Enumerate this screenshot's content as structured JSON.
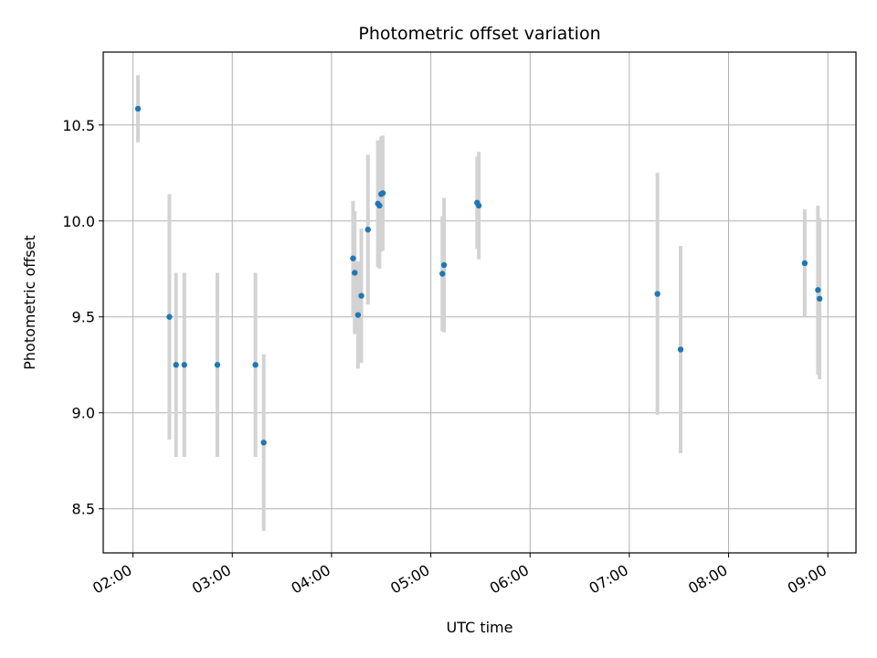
{
  "chart_data": {
    "type": "scatter",
    "title": "Photometric offset variation",
    "xlabel": "UTC time",
    "ylabel": "Photometric offset",
    "xlim": [
      "01:42",
      "09:17"
    ],
    "ylim": [
      8.27,
      10.88
    ],
    "x_ticks": [
      "02:00",
      "03:00",
      "04:00",
      "05:00",
      "06:00",
      "07:00",
      "08:00",
      "09:00"
    ],
    "y_ticks": [
      "8.5",
      "9.0",
      "9.5",
      "10.0",
      "10.5"
    ],
    "grid": true,
    "colors": {
      "point": "#1f77b4",
      "errorbar": "#d3d3d3",
      "grid": "#b0b0b0"
    },
    "points": [
      {
        "x": "02:03",
        "y": 10.585,
        "err": 0.175
      },
      {
        "x": "02:22",
        "y": 9.5,
        "err": 0.64
      },
      {
        "x": "02:26",
        "y": 9.25,
        "err": 0.48
      },
      {
        "x": "02:31",
        "y": 9.25,
        "err": 0.48
      },
      {
        "x": "02:51",
        "y": 9.25,
        "err": 0.48
      },
      {
        "x": "03:14",
        "y": 9.25,
        "err": 0.48
      },
      {
        "x": "03:19",
        "y": 8.845,
        "err": 0.46
      },
      {
        "x": "04:13",
        "y": 9.805,
        "err": 0.3
      },
      {
        "x": "04:14",
        "y": 9.73,
        "err": 0.32
      },
      {
        "x": "04:16",
        "y": 9.51,
        "err": 0.28
      },
      {
        "x": "04:18",
        "y": 9.61,
        "err": 0.35
      },
      {
        "x": "04:22",
        "y": 9.955,
        "err": 0.39
      },
      {
        "x": "04:28",
        "y": 10.09,
        "err": 0.33
      },
      {
        "x": "04:29",
        "y": 10.08,
        "err": 0.33
      },
      {
        "x": "04:30",
        "y": 10.14,
        "err": 0.3
      },
      {
        "x": "04:31",
        "y": 10.145,
        "err": 0.3
      },
      {
        "x": "05:07",
        "y": 9.725,
        "err": 0.3
      },
      {
        "x": "05:08",
        "y": 9.77,
        "err": 0.35
      },
      {
        "x": "05:28",
        "y": 10.095,
        "err": 0.24
      },
      {
        "x": "05:29",
        "y": 10.08,
        "err": 0.28
      },
      {
        "x": "07:17",
        "y": 9.62,
        "err": 0.63
      },
      {
        "x": "07:31",
        "y": 9.33,
        "err": 0.54
      },
      {
        "x": "08:46",
        "y": 9.78,
        "err": 0.28
      },
      {
        "x": "08:54",
        "y": 9.64,
        "err": 0.44
      },
      {
        "x": "08:55",
        "y": 9.595,
        "err": 0.42
      }
    ]
  }
}
